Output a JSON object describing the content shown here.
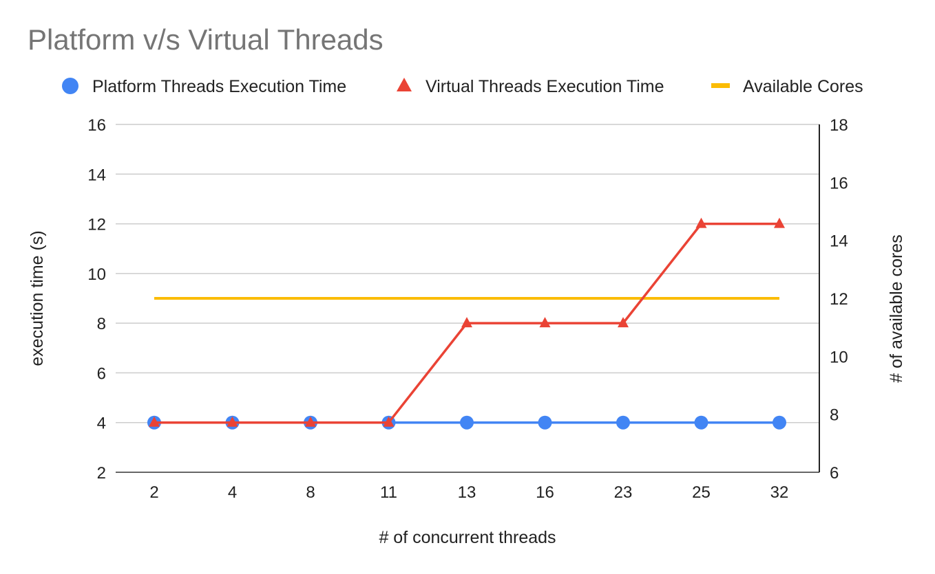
{
  "chart_data": {
    "type": "line",
    "title": "Platform v/s Virtual Threads",
    "xlabel": "# of concurrent threads",
    "ylabel": "execution time (s)",
    "y2label": "# of available cores",
    "categories": [
      "2",
      "4",
      "8",
      "11",
      "13",
      "16",
      "23",
      "25",
      "32"
    ],
    "ylim": [
      2,
      16
    ],
    "yticks": [
      2,
      4,
      6,
      8,
      10,
      12,
      14,
      16
    ],
    "y2lim": [
      6,
      18
    ],
    "y2ticks": [
      6,
      8,
      10,
      12,
      14,
      16,
      18
    ],
    "grid": true,
    "legend_position": "top",
    "series": [
      {
        "name": "Platform Threads Execution Time",
        "axis": "left",
        "marker": "circle",
        "color": "#4285f4",
        "values": [
          4,
          4,
          4,
          4,
          4,
          4,
          4,
          4,
          4
        ]
      },
      {
        "name": "Virtual Threads Execution Time",
        "axis": "left",
        "marker": "triangle",
        "color": "#ea4335",
        "values": [
          4,
          4,
          4,
          4,
          8,
          8,
          8,
          12,
          12
        ]
      },
      {
        "name": "Available Cores",
        "axis": "right",
        "marker": "none",
        "color": "#fbbc04",
        "values": [
          12,
          12,
          12,
          12,
          12,
          12,
          12,
          12,
          12
        ]
      }
    ]
  }
}
